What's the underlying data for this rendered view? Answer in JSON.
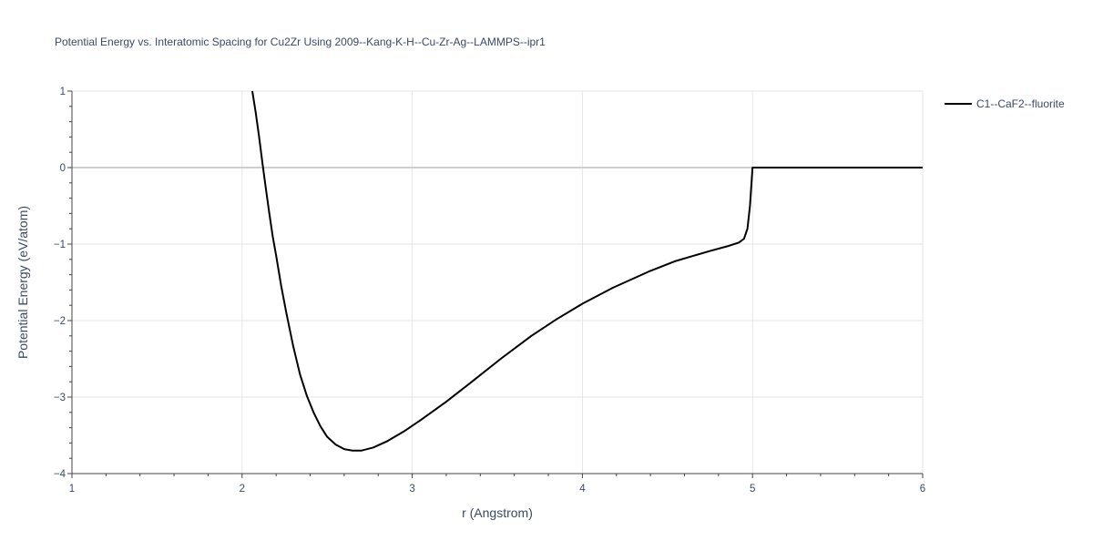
{
  "chart_data": {
    "type": "line",
    "title": "Potential Energy vs. Interatomic Spacing for Cu2Zr Using 2009--Kang-K-H--Cu-Zr-Ag--LAMMPS--ipr1",
    "xlabel": "r (Angstrom)",
    "ylabel": "Potential Energy (eV/atom)",
    "xlim": [
      1,
      6
    ],
    "ylim": [
      -4,
      1
    ],
    "xticks": [
      1,
      2,
      3,
      4,
      5,
      6
    ],
    "xtick_labels": [
      "1",
      "2",
      "3",
      "4",
      "5",
      "6"
    ],
    "yticks": [
      1,
      0,
      -1,
      -2,
      -3,
      -4
    ],
    "ytick_labels": [
      "1",
      "0",
      "−1",
      "−2",
      "−3",
      "−4"
    ],
    "grid": true,
    "legend_position": "top-right",
    "series": [
      {
        "name": "C1--CaF2--fluorite",
        "color": "#000000",
        "x": [
          2.06,
          2.08,
          2.1,
          2.12,
          2.14,
          2.16,
          2.18,
          2.2,
          2.23,
          2.26,
          2.3,
          2.34,
          2.38,
          2.42,
          2.46,
          2.5,
          2.55,
          2.6,
          2.65,
          2.7,
          2.77,
          2.85,
          2.95,
          3.05,
          3.2,
          3.35,
          3.52,
          3.7,
          3.85,
          4.0,
          4.18,
          4.4,
          4.55,
          4.75,
          4.85,
          4.92,
          4.95,
          4.97,
          4.985,
          5.0,
          5.3,
          5.6,
          6.0
        ],
        "y": [
          1.0,
          0.72,
          0.4,
          0.05,
          -0.28,
          -0.6,
          -0.9,
          -1.15,
          -1.55,
          -1.9,
          -2.33,
          -2.7,
          -2.98,
          -3.2,
          -3.38,
          -3.52,
          -3.62,
          -3.68,
          -3.7,
          -3.7,
          -3.66,
          -3.58,
          -3.45,
          -3.3,
          -3.06,
          -2.8,
          -2.5,
          -2.2,
          -1.98,
          -1.78,
          -1.57,
          -1.35,
          -1.22,
          -1.09,
          -1.03,
          -0.98,
          -0.93,
          -0.8,
          -0.5,
          0.0,
          0.0,
          0.0,
          0.0
        ]
      }
    ]
  }
}
